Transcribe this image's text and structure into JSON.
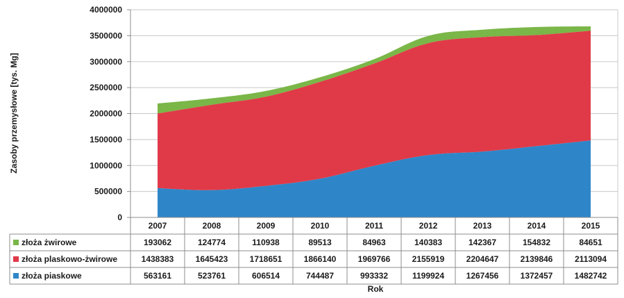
{
  "chart_data": {
    "type": "area",
    "stacked": true,
    "xlabel": "Rok",
    "ylabel": "Zasoby przemysłowe [tys. Mg]",
    "ylim": [
      0,
      4000000
    ],
    "yticks": [
      "0",
      "500000",
      "1000000",
      "1500000",
      "2000000",
      "2500000",
      "3000000",
      "3500000",
      "4000000"
    ],
    "categories": [
      "2007",
      "2008",
      "2009",
      "2010",
      "2011",
      "2012",
      "2013",
      "2014",
      "2015"
    ],
    "grid": true,
    "legend_placement": "data-table",
    "series": [
      {
        "name": "złoża żwirowe",
        "color": "#7ab648",
        "values": [
          193062,
          124774,
          110938,
          89513,
          84963,
          140383,
          142367,
          154832,
          84651
        ],
        "labels": [
          "193062",
          "124774",
          "110938",
          "89513",
          "84963",
          "140383",
          "142367",
          "154832",
          "84651"
        ]
      },
      {
        "name": "złoża plaskowo-żwirowe",
        "color": "#e03a48",
        "values": [
          1438383,
          1645423,
          1718651,
          1866140,
          1969766,
          2155919,
          2204647,
          2139846,
          2113094
        ],
        "labels": [
          "1438383",
          "1645423",
          "1718651",
          "1866140",
          "1969766",
          "2155919",
          "2204647",
          "2139846",
          "2113094"
        ]
      },
      {
        "name": "złoża piaskowe",
        "color": "#2e86c8",
        "values": [
          563161,
          523761,
          606514,
          744487,
          993332,
          1199924,
          1267456,
          1372457,
          1482742
        ],
        "labels": [
          "563161",
          "523761",
          "606514",
          "744487",
          "993332",
          "1199924",
          "1267456",
          "1372457",
          "1482742"
        ]
      }
    ],
    "stack_order": [
      "złoża piaskowe",
      "złoża plaskowo-żwirowe",
      "złoża żwirowe"
    ]
  }
}
